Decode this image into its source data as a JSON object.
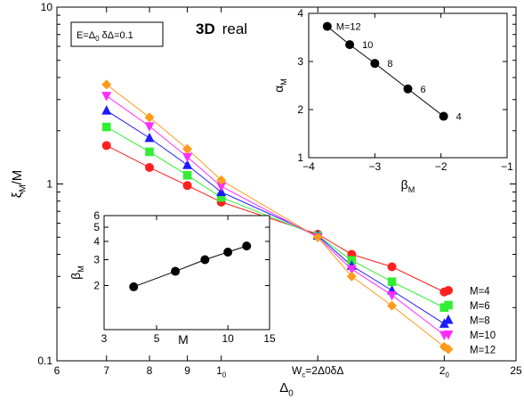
{
  "chart_data": [
    {
      "type": "line",
      "title": "3D real",
      "title_parts": {
        "bold": "3D",
        "normal": "real"
      },
      "box_label": "E=Δ0  δΔ=0.1",
      "xlabel": "Δ0",
      "ylabel": "ξM/M",
      "xscale": "log",
      "yscale": "log",
      "xlim": [
        6,
        25
      ],
      "ylim": [
        0.1,
        10
      ],
      "x_ticks": [
        {
          "value": 6,
          "label": "6"
        },
        {
          "value": 7,
          "label": "7"
        },
        {
          "value": 8,
          "label": "8"
        },
        {
          "value": 9,
          "label": "9"
        },
        {
          "value": 10,
          "label": "10"
        },
        {
          "value": 13.5,
          "label": "Wc=2Δ0δΔ"
        },
        {
          "value": 20,
          "label": "20"
        },
        {
          "value": 25,
          "label": "25"
        }
      ],
      "y_ticks": [
        {
          "value": 0.1,
          "label": "0.1"
        },
        {
          "value": 1,
          "label": "1"
        },
        {
          "value": 10,
          "label": "10"
        }
      ],
      "x": [
        7,
        8,
        9,
        10,
        13.5,
        15,
        17,
        20
      ],
      "series": [
        {
          "name": "M=4",
          "color": "#ff2020",
          "marker": "circle",
          "values": [
            1.65,
            1.24,
            0.98,
            0.79,
            0.52,
            0.4,
            0.34,
            0.245
          ]
        },
        {
          "name": "M=6",
          "color": "#33ee33",
          "marker": "square",
          "values": [
            2.1,
            1.52,
            1.12,
            0.84,
            0.51,
            0.37,
            0.28,
            0.2
          ]
        },
        {
          "name": "M=8",
          "color": "#1a1aff",
          "marker": "triangle-up",
          "values": [
            2.6,
            1.82,
            1.28,
            0.9,
            0.51,
            0.345,
            0.25,
            0.162
          ]
        },
        {
          "name": "M=10",
          "color": "#ff2cff",
          "marker": "triangle-down",
          "values": [
            3.15,
            2.12,
            1.42,
            0.97,
            0.5,
            0.33,
            0.235,
            0.14
          ]
        },
        {
          "name": "M=12",
          "color": "#ff9a1a",
          "marker": "diamond",
          "values": [
            3.65,
            2.38,
            1.58,
            1.05,
            0.5,
            0.3,
            0.205,
            0.12
          ]
        }
      ],
      "grid": false,
      "legend": "right"
    },
    {
      "type": "scatter",
      "title": "",
      "xlabel": "βM",
      "ylabel": "αM",
      "xlim": [
        -4,
        -1
      ],
      "ylim": [
        1,
        4
      ],
      "x_ticks": [
        {
          "value": -4,
          "label": "−4"
        },
        {
          "value": -3,
          "label": "−3"
        },
        {
          "value": -2,
          "label": "−2"
        },
        {
          "value": -1,
          "label": "−1"
        }
      ],
      "y_ticks": [
        {
          "value": 1,
          "label": "1"
        },
        {
          "value": 2,
          "label": "2"
        },
        {
          "value": 3,
          "label": "3"
        },
        {
          "value": 4,
          "label": "4"
        }
      ],
      "points": [
        {
          "x": -3.72,
          "y": 3.73,
          "label": "M=12"
        },
        {
          "x": -3.38,
          "y": 3.35,
          "label": "10"
        },
        {
          "x": -3.0,
          "y": 2.96,
          "label": "8"
        },
        {
          "x": -2.5,
          "y": 2.43,
          "label": "6"
        },
        {
          "x": -1.96,
          "y": 1.86,
          "label": "4"
        }
      ],
      "color": "#000000",
      "grid": false
    },
    {
      "type": "line",
      "title": "",
      "xlabel": "M",
      "ylabel": "βM",
      "xscale": "log",
      "yscale": "log",
      "xlim": [
        3,
        15
      ],
      "ylim": [
        1,
        6
      ],
      "x_ticks": [
        {
          "value": 3,
          "label": "3"
        },
        {
          "value": 5,
          "label": "5"
        },
        {
          "value": 10,
          "label": "10"
        },
        {
          "value": 15,
          "label": "15"
        }
      ],
      "y_ticks": [
        {
          "value": 2,
          "label": "2"
        },
        {
          "value": 3,
          "label": "3"
        },
        {
          "value": 4,
          "label": "4"
        },
        {
          "value": 5,
          "label": "5"
        },
        {
          "value": 6,
          "label": "6"
        }
      ],
      "x": [
        4,
        6,
        8,
        10,
        12
      ],
      "values": [
        1.96,
        2.5,
        3.0,
        3.38,
        3.72
      ],
      "color": "#000000",
      "grid": false
    }
  ]
}
